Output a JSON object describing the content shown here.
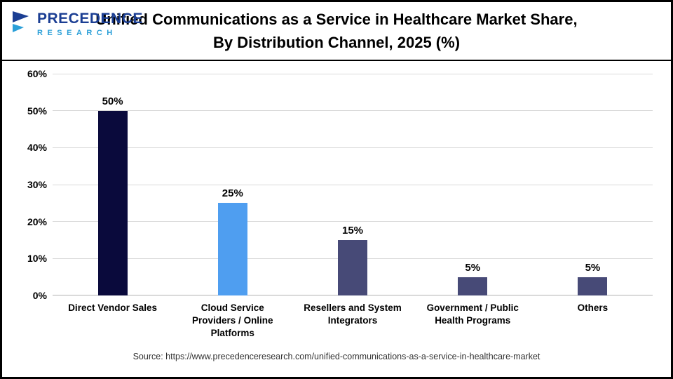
{
  "header": {
    "logo_line1": "PRECEDENCE",
    "logo_line2": "RESEARCH",
    "title": "Unified Communications as a Service in Healthcare Market Share, By Distribution Channel, 2025 (%)"
  },
  "chart_data": {
    "type": "bar",
    "title": "Unified Communications as a Service in Healthcare Market Share, By Distribution Channel, 2025 (%)",
    "categories": [
      "Direct Vendor Sales",
      "Cloud Service Providers / Online Platforms",
      "Resellers and System Integrators",
      "Government / Public Health Programs",
      "Others"
    ],
    "values": [
      50,
      25,
      15,
      5,
      5
    ],
    "value_labels": [
      "50%",
      "25%",
      "15%",
      "5%",
      "5%"
    ],
    "bar_colors": [
      "#0a0a3c",
      "#4f9ef0",
      "#474a77",
      "#474a77",
      "#474a77"
    ],
    "xlabel": "",
    "ylabel": "",
    "ylim": [
      0,
      60
    ],
    "yticks": [
      0,
      10,
      20,
      30,
      40,
      50,
      60
    ],
    "ytick_labels": [
      "0%",
      "10%",
      "20%",
      "30%",
      "40%",
      "50%",
      "60%"
    ],
    "grid": true,
    "legend": "none",
    "colors": {
      "grid": "#d9d9d9",
      "logo_dark_blue": "#1b3e93",
      "logo_light_blue": "#2a9fd8"
    }
  },
  "footer": {
    "source": "Source: https://www.precedenceresearch.com/unified-communications-as-a-service-in-healthcare-market"
  }
}
